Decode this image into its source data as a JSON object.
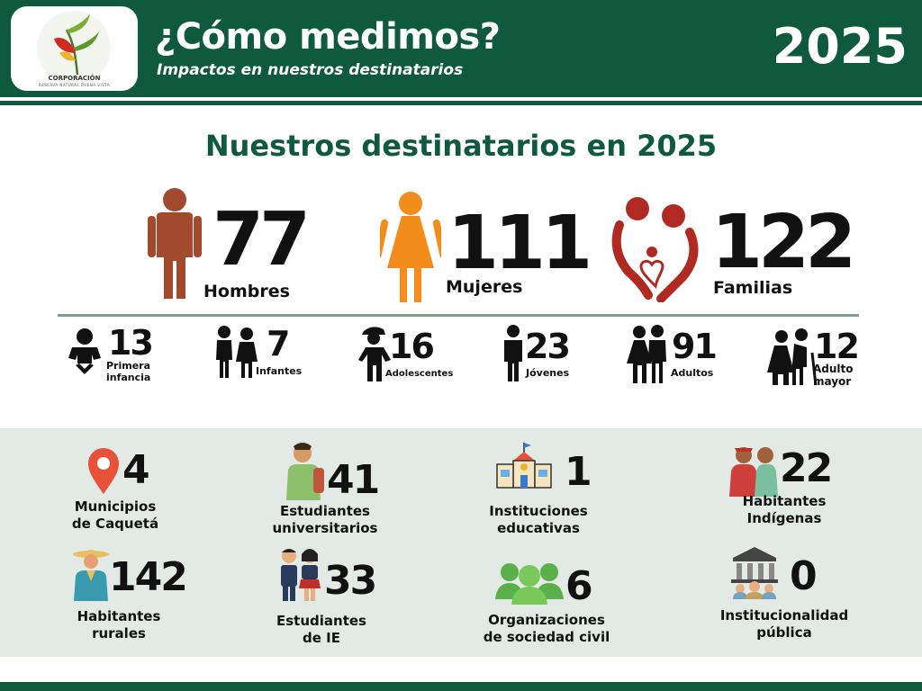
{
  "header": {
    "title": "¿Cómo medimos?",
    "subtitle": "Impactos en nuestros destinatarios",
    "year": "2025",
    "logo_name": "CORPORACIÓN",
    "logo_sub": "RESERVA NATURAL BUENA VISTA"
  },
  "section_title": "Nuestros destinatarios en 2025",
  "main": [
    {
      "value": "77",
      "label": "Hombres",
      "icon": "man-icon",
      "color": "#a24a2e"
    },
    {
      "value": "111",
      "label": "Mujeres",
      "icon": "woman-icon",
      "color": "#f28c1a"
    },
    {
      "value": "122",
      "label": "Familias",
      "icon": "family-heart-icon",
      "color": "#b02a23"
    }
  ],
  "age_groups": [
    {
      "value": "13",
      "label": "Primera infancia",
      "icon": "baby-icon"
    },
    {
      "value": "7",
      "label": "Infantes",
      "icon": "children-icon"
    },
    {
      "value": "16",
      "label": "Adolescentes",
      "icon": "teen-icon"
    },
    {
      "value": "23",
      "label": "Jóvenes",
      "icon": "young-person-icon"
    },
    {
      "value": "91",
      "label": "Adultos",
      "icon": "adults-icon"
    },
    {
      "value": "12",
      "label": "Adulto mayor",
      "icon": "elderly-icon"
    }
  ],
  "stats": [
    {
      "value": "4",
      "label1": "Municipios",
      "label2": "de Caquetá",
      "icon": "location-pin-icon"
    },
    {
      "value": "41",
      "label1": "Estudiantes",
      "label2": "universitarios",
      "icon": "university-student-icon"
    },
    {
      "value": "1",
      "label1": "Instituciones",
      "label2": "educativas",
      "icon": "school-icon"
    },
    {
      "value": "22",
      "label1": "Habitantes",
      "label2": "Indígenas",
      "icon": "indigenous-people-icon"
    },
    {
      "value": "142",
      "label1": "Habitantes",
      "label2": "rurales",
      "icon": "farmer-icon"
    },
    {
      "value": "33",
      "label1": "Estudiantes",
      "label2": "de IE",
      "icon": "school-students-icon"
    },
    {
      "value": "6",
      "label1": "Organizaciones",
      "label2": "de sociedad civil",
      "icon": "community-group-icon"
    },
    {
      "value": "0",
      "label1": "Institucionalidad",
      "label2": "pública",
      "icon": "government-building-icon"
    }
  ]
}
